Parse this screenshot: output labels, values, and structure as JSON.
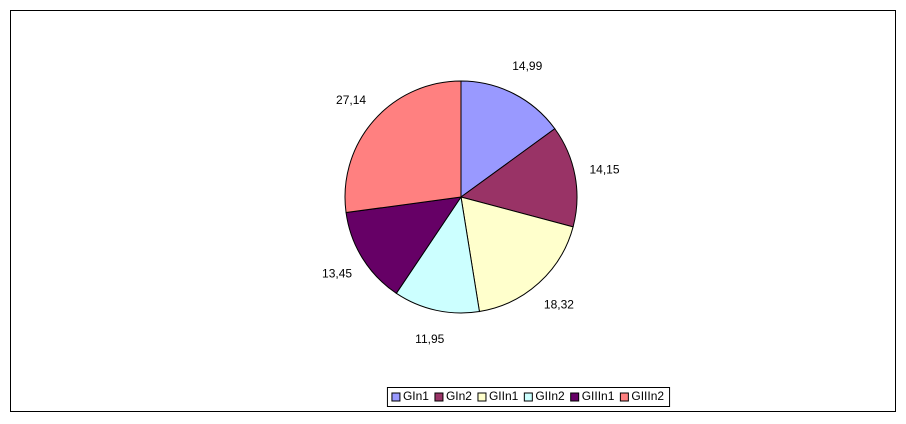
{
  "chart_data": {
    "type": "pie",
    "categories": [
      "GIn1",
      "GIn2",
      "GIIn1",
      "GIIn2",
      "GIIIn1",
      "GIIIn2"
    ],
    "values": [
      14.99,
      14.15,
      18.32,
      11.95,
      13.45,
      27.14
    ],
    "value_labels": [
      "14,99",
      "14,15",
      "18,32",
      "11,95",
      "13,45",
      "27,14"
    ],
    "colors": [
      "#9999ff",
      "#993366",
      "#ffffcc",
      "#ccffff",
      "#660066",
      "#ff8080"
    ],
    "legend": "bottom"
  }
}
